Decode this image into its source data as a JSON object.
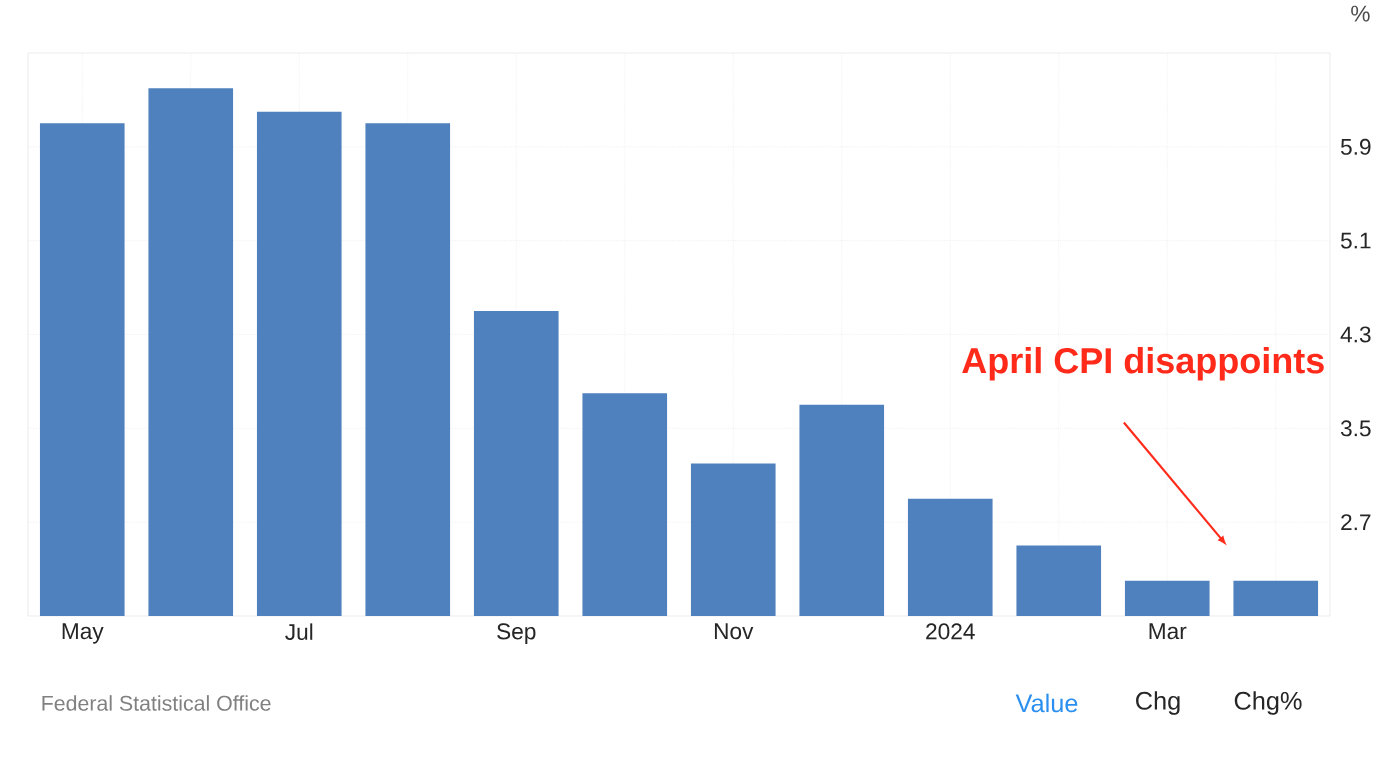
{
  "chart_data": {
    "type": "bar",
    "ylabel": "%",
    "categories": [
      "May",
      null,
      "Jul",
      null,
      "Sep",
      null,
      "Nov",
      null,
      "2024",
      null,
      "Mar",
      null
    ],
    "values": [
      6.1,
      6.4,
      6.2,
      6.1,
      4.5,
      3.8,
      3.2,
      3.7,
      2.9,
      2.5,
      2.2,
      2.2
    ],
    "color": "#4e81bd",
    "ylim": [
      1.9,
      6.7
    ],
    "yticks": [
      2.7,
      3.5,
      4.3,
      5.1,
      5.9
    ],
    "grid": true,
    "annotations": [
      "April CPI disappoints",
      "Federal Statistical Office",
      "Value",
      "Chg",
      "Chg%"
    ]
  }
}
